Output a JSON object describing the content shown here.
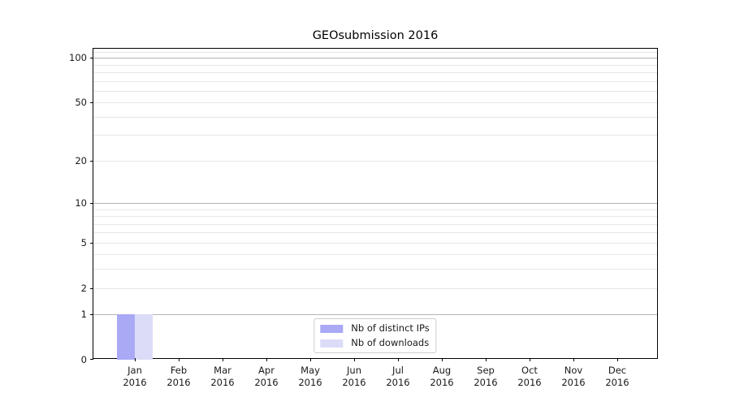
{
  "chart_data": {
    "type": "bar",
    "title": "GEOsubmission 2016",
    "categories": [
      "Jan",
      "Feb",
      "Mar",
      "Apr",
      "May",
      "Jun",
      "Jul",
      "Aug",
      "Sep",
      "Oct",
      "Nov",
      "Dec"
    ],
    "category_year": "2016",
    "series": [
      {
        "name": "Nb of distinct IPs",
        "color": "#a9a9f5",
        "values": [
          1,
          0,
          0,
          0,
          0,
          0,
          0,
          0,
          0,
          0,
          0,
          0
        ]
      },
      {
        "name": "Nb of downloads",
        "color": "#dcdcf8",
        "values": [
          1,
          0,
          0,
          0,
          0,
          0,
          0,
          0,
          0,
          0,
          0,
          0
        ]
      }
    ],
    "yscale": "log1p",
    "ylim": [
      0,
      115
    ],
    "ytick_labels": [
      0,
      1,
      2,
      5,
      10,
      20,
      50,
      100
    ],
    "major_grid_values": [
      1,
      10,
      100
    ],
    "minor_grid_values": [
      2,
      3,
      4,
      5,
      6,
      7,
      8,
      9,
      20,
      30,
      40,
      50,
      60,
      70,
      80,
      90,
      110
    ],
    "grid": "horizontal",
    "legend_position": "lower center",
    "colors": {
      "major_grid": "#b4b4b4",
      "minor_grid": "#e7e7e7",
      "axis": "#000000",
      "text": "#1a1a1a",
      "legend_border": "#cccccc",
      "background": "#ffffff"
    }
  }
}
